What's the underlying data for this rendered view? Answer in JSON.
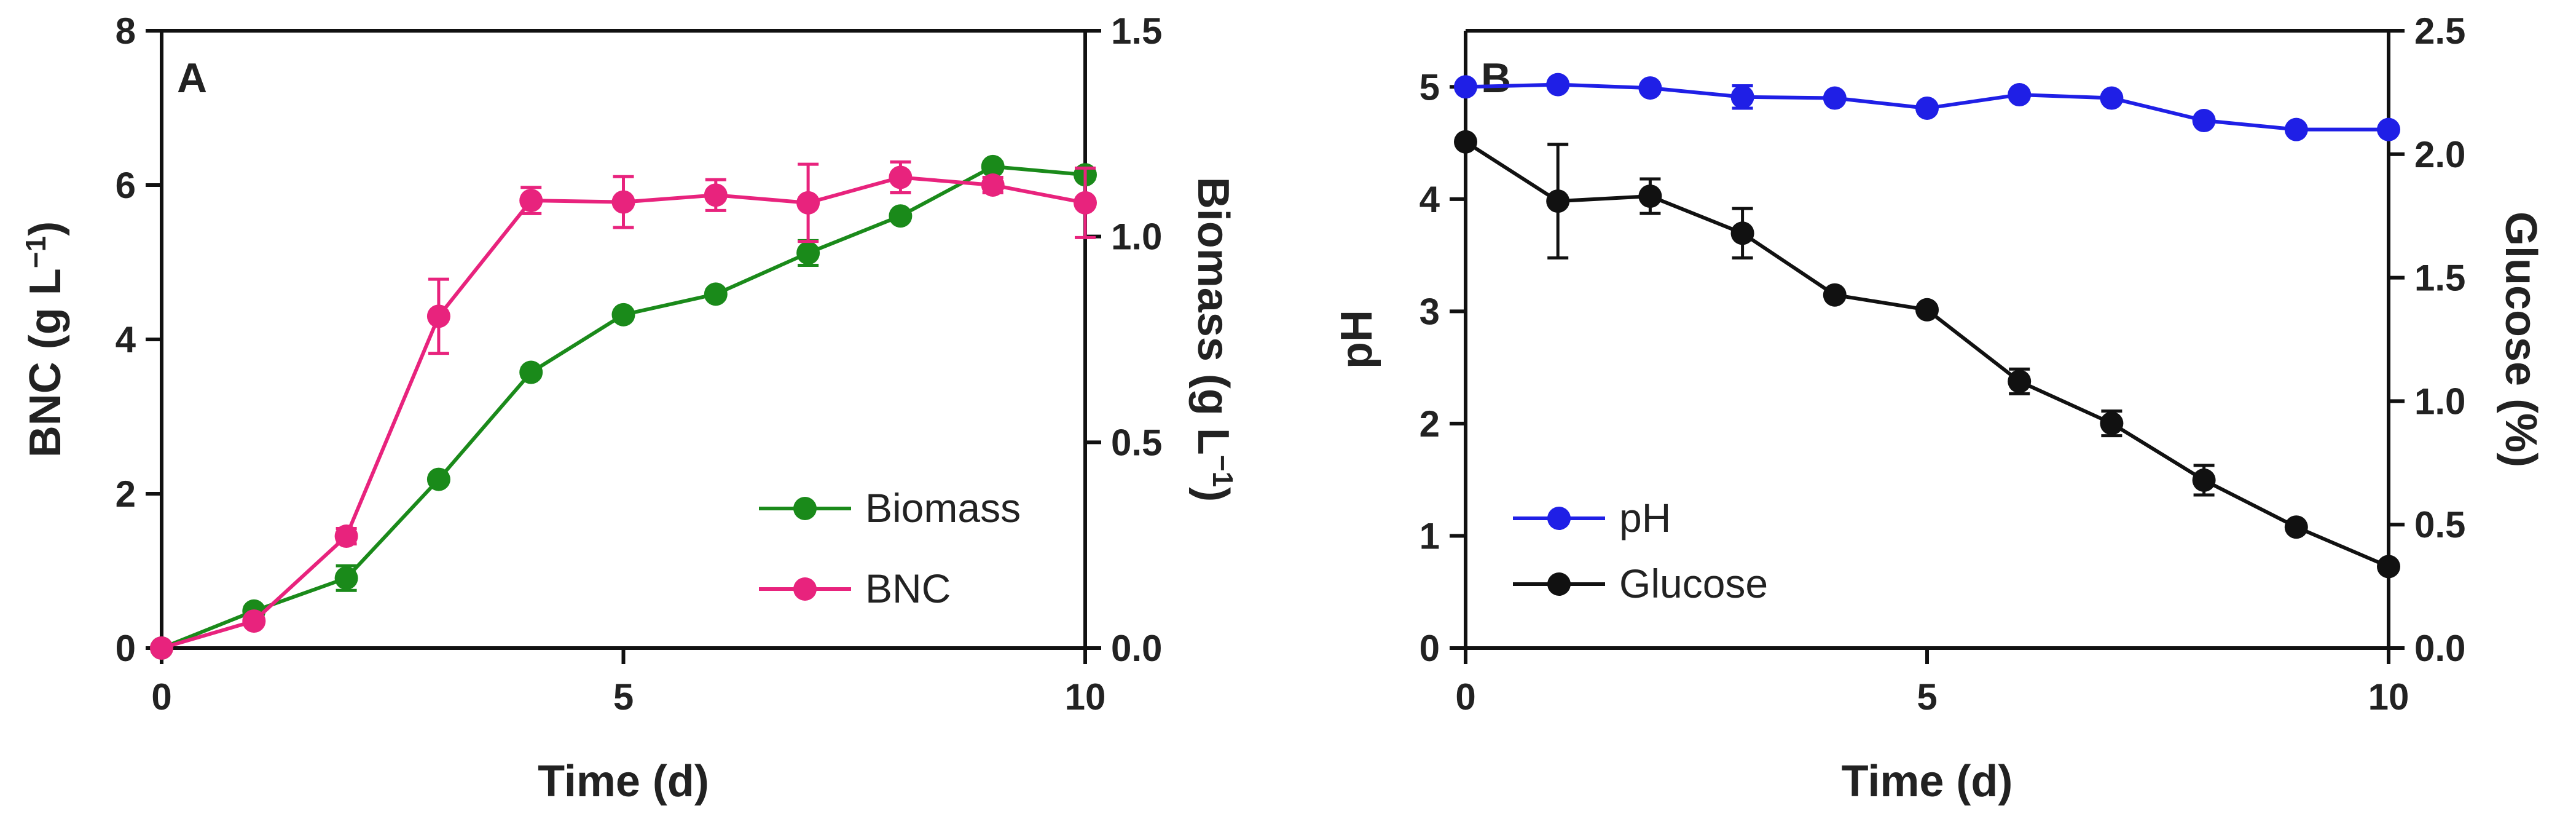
{
  "chart_data": [
    {
      "type": "line",
      "panel_label": "A",
      "x": [
        0,
        1,
        2,
        3,
        4,
        5,
        6,
        7,
        8,
        9,
        10
      ],
      "xlabel": "Time (d)",
      "xlim": [
        0,
        10
      ],
      "xticks": [
        0,
        5,
        10
      ],
      "ylabel_left": "BNC (g L",
      "ylabel_left_sup": "−1",
      "ylabel_left_end": ")",
      "ylim_left": [
        0,
        8
      ],
      "yticks_left": [
        "0",
        "2",
        "4",
        "6",
        "8"
      ],
      "ylabel_right": "Biomass (g L",
      "ylabel_right_sup": "−1",
      "ylabel_right_end": ")",
      "ylim_right": [
        0,
        1.5
      ],
      "yticks_right": [
        "0.0",
        "0.5",
        "1.0",
        "1.5"
      ],
      "legend_position": "bottom-right",
      "series": [
        {
          "name": "Biomass",
          "axis": "right",
          "color": "#1a8a1a",
          "values": [
            0.0,
            0.09,
            0.17,
            0.41,
            0.67,
            0.81,
            0.86,
            0.96,
            1.05,
            1.17,
            1.15
          ],
          "errors": [
            0,
            0.01,
            0.03,
            0.01,
            0.01,
            0.01,
            0.01,
            0.03,
            0.01,
            0.01,
            0.01
          ]
        },
        {
          "name": "BNC",
          "axis": "left",
          "color": "#e8237d",
          "values": [
            0.0,
            0.35,
            1.45,
            4.3,
            5.8,
            5.78,
            5.87,
            5.77,
            6.1,
            6.0,
            5.77
          ],
          "errors": [
            0,
            0.05,
            0.1,
            0.48,
            0.17,
            0.33,
            0.2,
            0.5,
            0.2,
            0.1,
            0.45
          ]
        }
      ]
    },
    {
      "type": "line",
      "panel_label": "B",
      "x": [
        0,
        1,
        2,
        3,
        4,
        5,
        6,
        7,
        8,
        9,
        10
      ],
      "xlabel": "Time (d)",
      "xlim": [
        0,
        10
      ],
      "xticks": [
        0,
        5,
        10
      ],
      "ylabel_left": "pH",
      "ylim_left": [
        0,
        5.5
      ],
      "yticks_left": [
        "0",
        "1",
        "2",
        "3",
        "4",
        "5"
      ],
      "ylabel_right": "Glucose (%)",
      "ylim_right": [
        0,
        2.5
      ],
      "yticks_right": [
        "0.0",
        "0.5",
        "1.0",
        "1.5",
        "2.0",
        "2.5"
      ],
      "legend_position": "bottom-left",
      "series": [
        {
          "name": "pH",
          "axis": "left",
          "color": "#1f1fe6",
          "values": [
            5.0,
            5.02,
            4.99,
            4.91,
            4.9,
            4.81,
            4.93,
            4.9,
            4.7,
            4.62,
            4.62
          ],
          "errors": [
            0,
            0.02,
            0.02,
            0.1,
            0.02,
            0.03,
            0.02,
            0.02,
            0.02,
            0.02,
            0.02
          ]
        },
        {
          "name": "Glucose",
          "axis": "right",
          "color": "#111111",
          "values": [
            2.05,
            1.81,
            1.83,
            1.68,
            1.43,
            1.37,
            1.08,
            0.91,
            0.68,
            0.49,
            0.33
          ],
          "errors": [
            0.01,
            0.23,
            0.07,
            0.1,
            0.01,
            0.01,
            0.05,
            0.05,
            0.06,
            0.01,
            0.01
          ]
        }
      ]
    }
  ]
}
